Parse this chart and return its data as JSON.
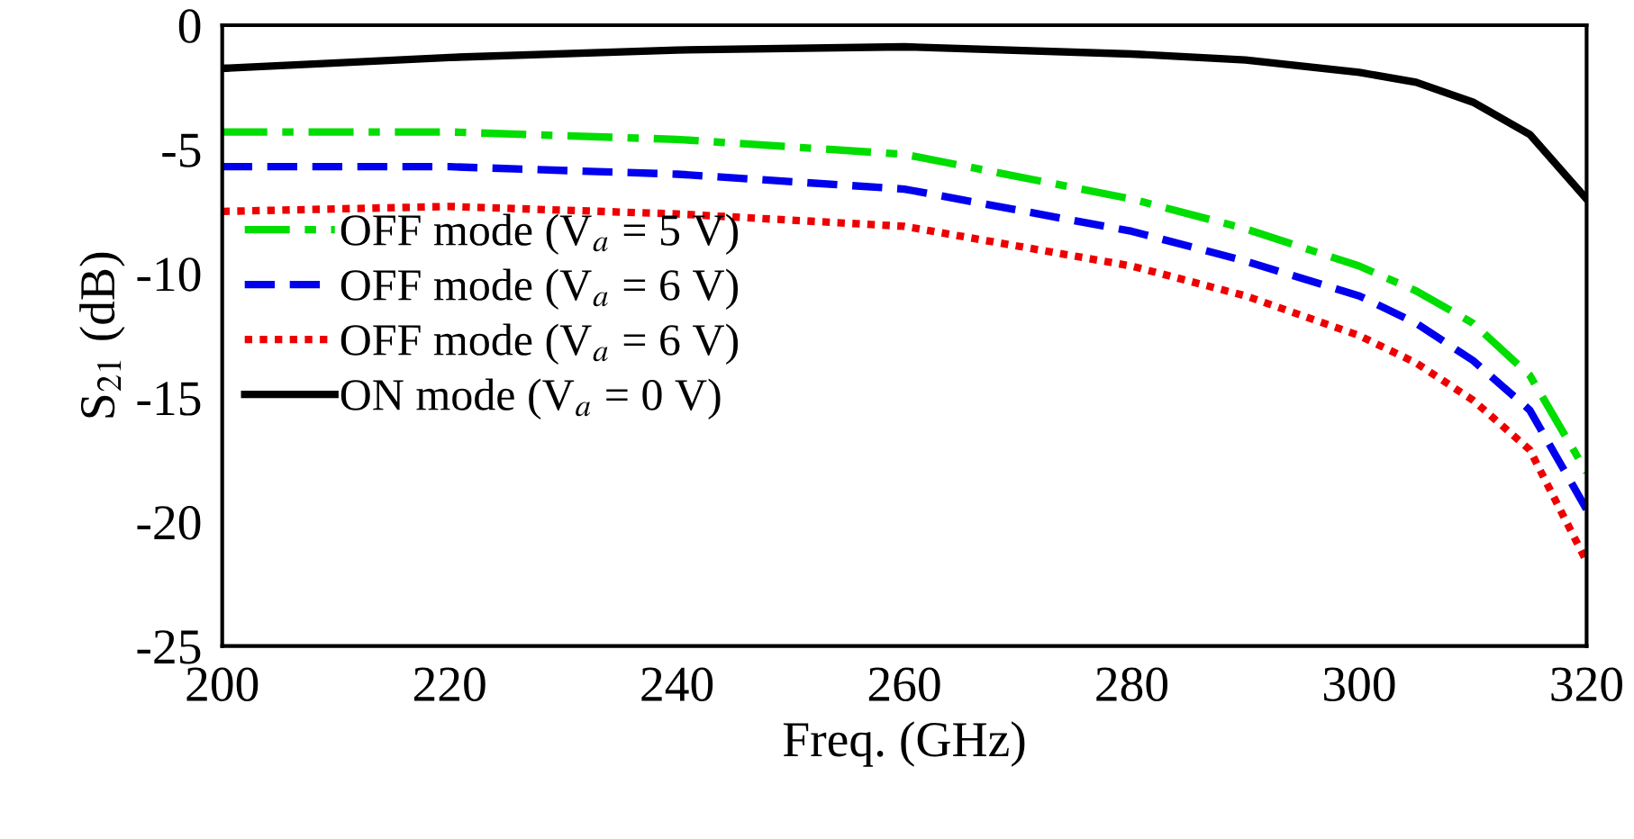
{
  "chart_data": {
    "type": "line",
    "xlabel": "Freq. (GHz)",
    "ylabel": "S$_{21}$ (dB)",
    "xlim": [
      200,
      320
    ],
    "xticks": [
      200,
      220,
      240,
      260,
      280,
      300,
      320
    ],
    "ylim": [
      -25,
      0
    ],
    "yticks": [
      -25,
      -20,
      -15,
      -10,
      -5,
      0
    ],
    "grid": false,
    "legend": "left",
    "marker": "none",
    "x": [
      200,
      220,
      240,
      260,
      280,
      290,
      300,
      305,
      310,
      315,
      320
    ],
    "series": [
      {
        "name": "OFF mode (V$_{a}$ = 5 V)",
        "color": "#00dd00",
        "line_style": "dashdot",
        "values": [
          -4.3,
          -4.3,
          -4.6,
          -5.2,
          -7.0,
          -8.2,
          -9.7,
          -10.7,
          -12.0,
          -14.1,
          -18.0
        ]
      },
      {
        "name": "OFF mode (V$_{a}$ = 6 V)",
        "color": "#0000ee",
        "line_style": "dashed",
        "values": [
          -5.7,
          -5.7,
          -6.0,
          -6.6,
          -8.3,
          -9.5,
          -10.9,
          -12.0,
          -13.5,
          -15.5,
          -19.5
        ]
      },
      {
        "name": "OFF mode (V$_{a}$ = 6 V)",
        "color": "#ee0000",
        "line_style": "dotted",
        "values": [
          -7.5,
          -7.3,
          -7.6,
          -8.1,
          -9.7,
          -10.9,
          -12.5,
          -13.6,
          -15.1,
          -17.1,
          -21.6
        ]
      },
      {
        "name": "ON mode (V$_{a}$ = 0 V)",
        "color": "#000000",
        "line_style": "solid",
        "values": [
          -1.74,
          -1.3,
          -1.0,
          -0.87,
          -1.16,
          -1.4,
          -1.9,
          -2.3,
          -3.1,
          -4.4,
          -7.0
        ]
      }
    ]
  }
}
